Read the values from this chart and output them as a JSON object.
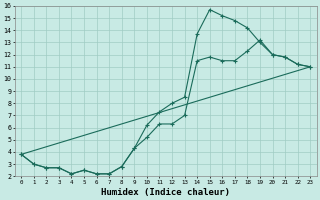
{
  "xlabel": "Humidex (Indice chaleur)",
  "bg_color": "#c8eae4",
  "grid_color": "#a0ccc4",
  "line_color": "#1a6b5a",
  "xlim": [
    -0.5,
    23.5
  ],
  "ylim": [
    2,
    16
  ],
  "xtick_labels": [
    "0",
    "1",
    "2",
    "3",
    "4",
    "5",
    "6",
    "7",
    "8",
    "9",
    "10",
    "11",
    "12",
    "13",
    "14",
    "15",
    "16",
    "17",
    "18",
    "19",
    "20",
    "21",
    "22",
    "23"
  ],
  "xtick_vals": [
    0,
    1,
    2,
    3,
    4,
    5,
    6,
    7,
    8,
    9,
    10,
    11,
    12,
    13,
    14,
    15,
    16,
    17,
    18,
    19,
    20,
    21,
    22,
    23
  ],
  "ytick_vals": [
    2,
    3,
    4,
    5,
    6,
    7,
    8,
    9,
    10,
    11,
    12,
    13,
    14,
    15,
    16
  ],
  "line1": {
    "x": [
      0,
      1,
      2,
      3,
      4,
      5,
      6,
      7,
      8,
      9,
      10,
      11,
      12,
      13,
      14,
      15,
      16,
      17,
      18,
      19,
      20,
      21,
      22,
      23
    ],
    "y": [
      3.8,
      3.0,
      2.7,
      2.7,
      2.2,
      2.5,
      2.2,
      2.2,
      2.8,
      4.3,
      6.2,
      7.3,
      8.0,
      8.5,
      13.7,
      15.7,
      15.2,
      14.8,
      14.2,
      13.0,
      12.0,
      11.8,
      11.2,
      11.0
    ]
  },
  "line2": {
    "x": [
      0,
      1,
      2,
      3,
      4,
      5,
      6,
      7,
      8,
      9,
      10,
      11,
      12,
      13,
      14,
      15,
      16,
      17,
      18,
      19,
      20,
      21,
      22,
      23
    ],
    "y": [
      3.8,
      3.0,
      2.7,
      2.7,
      2.2,
      2.5,
      2.2,
      2.2,
      2.8,
      4.3,
      5.2,
      6.3,
      6.3,
      7.0,
      11.5,
      11.8,
      11.5,
      11.5,
      12.3,
      13.2,
      12.0,
      11.8,
      11.2,
      11.0
    ]
  },
  "line3": {
    "x": [
      0,
      23
    ],
    "y": [
      3.8,
      11.0
    ]
  }
}
